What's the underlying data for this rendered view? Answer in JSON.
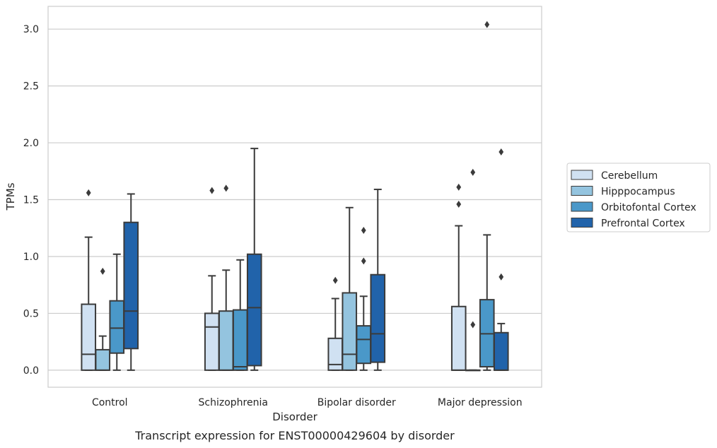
{
  "chart_data": {
    "type": "box",
    "title": "",
    "caption": "Transcript expression for ENST00000429604 by disorder",
    "xlabel": "Disorder",
    "ylabel": "TPMs",
    "ylim": [
      -0.15,
      3.2
    ],
    "yticks": [
      0.0,
      0.5,
      1.0,
      1.5,
      2.0,
      2.5,
      3.0
    ],
    "ytick_labels": [
      "0.0",
      "0.5",
      "1.0",
      "1.5",
      "2.0",
      "2.5",
      "3.0"
    ],
    "grid": "horizontal",
    "legend_position": "right",
    "categories": [
      "Control",
      "Schizophrenia",
      "Bipolar disorder",
      "Major depression"
    ],
    "series": [
      {
        "name": "Cerebellum",
        "color": "#d0e1f2",
        "boxes": [
          {
            "whislo": 0.0,
            "q1": 0.0,
            "med": 0.14,
            "q3": 0.58,
            "whishi": 1.17,
            "fliers": [
              1.56
            ]
          },
          {
            "whislo": 0.0,
            "q1": 0.0,
            "med": 0.38,
            "q3": 0.5,
            "whishi": 0.83,
            "fliers": [
              1.58
            ]
          },
          {
            "whislo": 0.0,
            "q1": 0.0,
            "med": 0.05,
            "q3": 0.28,
            "whishi": 0.63,
            "fliers": [
              0.79
            ]
          },
          {
            "whislo": 0.0,
            "q1": 0.0,
            "med": 0.0,
            "q3": 0.56,
            "whishi": 1.27,
            "fliers": [
              1.46,
              1.61
            ]
          }
        ]
      },
      {
        "name": "Hipppocampus",
        "color": "#94c4df",
        "boxes": [
          {
            "whislo": 0.0,
            "q1": 0.0,
            "med": 0.0,
            "q3": 0.18,
            "whishi": 0.3,
            "fliers": [
              0.87
            ]
          },
          {
            "whislo": 0.0,
            "q1": 0.0,
            "med": 0.0,
            "q3": 0.52,
            "whishi": 0.88,
            "fliers": [
              1.6
            ]
          },
          {
            "whislo": 0.0,
            "q1": 0.0,
            "med": 0.14,
            "q3": 0.68,
            "whishi": 1.43,
            "fliers": []
          },
          {
            "whislo": 0.0,
            "q1": 0.0,
            "med": 0.0,
            "q3": 0.0,
            "whishi": 0.0,
            "fliers": [
              0.4,
              1.74
            ]
          }
        ]
      },
      {
        "name": "Orbitofontal Cortex",
        "color": "#4a98c9",
        "boxes": [
          {
            "whislo": 0.0,
            "q1": 0.15,
            "med": 0.37,
            "q3": 0.61,
            "whishi": 1.02,
            "fliers": []
          },
          {
            "whislo": 0.0,
            "q1": 0.0,
            "med": 0.03,
            "q3": 0.53,
            "whishi": 0.97,
            "fliers": []
          },
          {
            "whislo": 0.0,
            "q1": 0.06,
            "med": 0.27,
            "q3": 0.39,
            "whishi": 0.65,
            "fliers": [
              0.96,
              1.23
            ]
          },
          {
            "whislo": 0.0,
            "q1": 0.03,
            "med": 0.32,
            "q3": 0.62,
            "whishi": 1.19,
            "fliers": [
              3.04
            ]
          }
        ]
      },
      {
        "name": "Prefrontal Cortex",
        "color": "#2163aa",
        "boxes": [
          {
            "whislo": 0.0,
            "q1": 0.19,
            "med": 0.52,
            "q3": 1.3,
            "whishi": 1.55,
            "fliers": []
          },
          {
            "whislo": 0.0,
            "q1": 0.04,
            "med": 0.55,
            "q3": 1.02,
            "whishi": 1.95,
            "fliers": []
          },
          {
            "whislo": 0.0,
            "q1": 0.07,
            "med": 0.32,
            "q3": 0.84,
            "whishi": 1.59,
            "fliers": []
          },
          {
            "whislo": 0.0,
            "q1": 0.0,
            "med": 0.0,
            "q3": 0.33,
            "whishi": 0.41,
            "fliers": [
              0.82,
              1.92
            ]
          }
        ]
      }
    ]
  }
}
